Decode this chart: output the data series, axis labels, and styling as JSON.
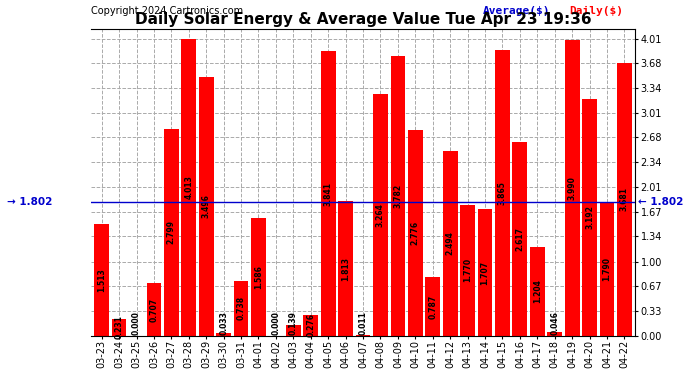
{
  "title": "Daily Solar Energy & Average Value Tue Apr 23 19:36",
  "copyright": "Copyright 2024 Cartronics.com",
  "legend_average": "Average($)",
  "legend_daily": "Daily($)",
  "average_value": 1.802,
  "categories": [
    "03-23",
    "03-24",
    "03-25",
    "03-26",
    "03-27",
    "03-28",
    "03-29",
    "03-30",
    "03-31",
    "04-01",
    "04-02",
    "04-03",
    "04-04",
    "04-05",
    "04-06",
    "04-07",
    "04-08",
    "04-09",
    "04-10",
    "04-11",
    "04-12",
    "04-13",
    "04-14",
    "04-15",
    "04-16",
    "04-17",
    "04-18",
    "04-19",
    "04-20",
    "04-21",
    "04-22"
  ],
  "values": [
    1.513,
    0.231,
    0.0,
    0.707,
    2.799,
    4.013,
    3.496,
    0.033,
    0.738,
    1.586,
    0.0,
    0.139,
    0.276,
    3.841,
    1.813,
    0.011,
    3.264,
    3.782,
    2.776,
    0.787,
    2.494,
    1.77,
    1.707,
    3.865,
    2.617,
    1.204,
    0.046,
    3.99,
    3.192,
    1.79,
    3.681
  ],
  "bar_color": "#ff0000",
  "avg_line_color": "#0000cc",
  "avg_label_color": "#0000cc",
  "daily_label_color": "#ff0000",
  "background_color": "#ffffff",
  "grid_color": "#aaaaaa",
  "yticks": [
    0.0,
    0.33,
    0.67,
    1.0,
    1.34,
    1.67,
    2.01,
    2.34,
    2.68,
    3.01,
    3.34,
    3.68,
    4.01
  ],
  "ylim": [
    0.0,
    4.15
  ],
  "title_fontsize": 11,
  "bar_label_fontsize": 5.5,
  "tick_fontsize": 7,
  "avg_fontsize": 7.5,
  "copyright_fontsize": 7,
  "legend_fontsize": 8
}
